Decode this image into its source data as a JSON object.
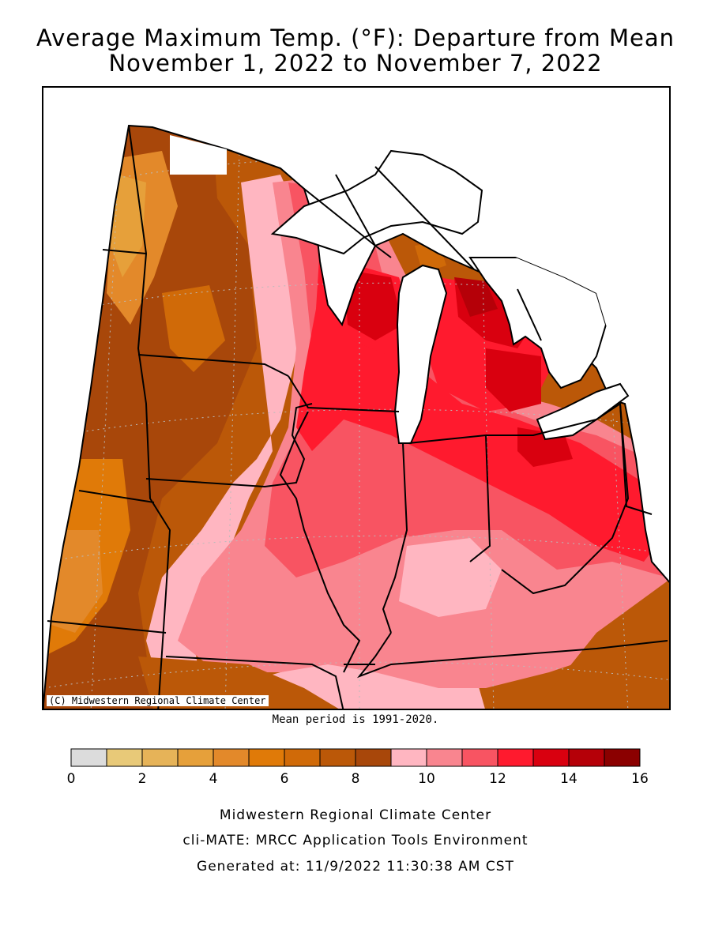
{
  "title": {
    "line1": "Average Maximum Temp. (°F): Departure from Mean",
    "line2": "November 1, 2022 to November 7, 2022"
  },
  "credit": "(C) Midwestern Regional Climate Center",
  "mean_period": "Mean period is 1991-2020.",
  "legend": {
    "colors": [
      "#dcdcdc",
      "#e8c978",
      "#e6b358",
      "#e6a03a",
      "#e3892a",
      "#e07a08",
      "#d06a08",
      "#bb5808",
      "#a8470a",
      "#ffb6c1",
      "#f9858f",
      "#f85462",
      "#ff1a2e",
      "#d9000f",
      "#b50008",
      "#8b0000"
    ],
    "tick_labels": [
      "0",
      "2",
      "4",
      "6",
      "8",
      "10",
      "12",
      "14",
      "16"
    ]
  },
  "footer": {
    "line1": "Midwestern Regional Climate Center",
    "line2": "cli-MATE: MRCC Application Tools Environment",
    "line3": "Generated at: 11/9/2022 11:30:38 AM CST"
  },
  "map": {
    "lake_color": "#ffffff",
    "border_color": "#000000"
  }
}
